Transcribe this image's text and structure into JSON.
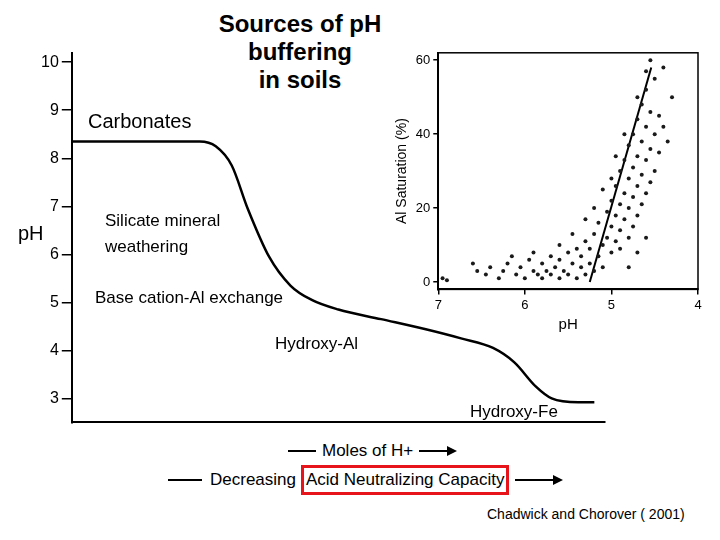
{
  "title": [
    "Sources of pH",
    "buffering",
    "in soils"
  ],
  "citation": "Chadwick and Chorover ( 2001)",
  "chart_data": [
    {
      "type": "line",
      "y_label": "pH",
      "x_label": "Moles of H+",
      "x_label_2": {
        "text": "Decreasing",
        "highlighted": "Acid Neutralizing Capacity"
      },
      "annotations": [
        "Carbonates",
        "Silicate mineral\nweathering",
        "Base cation-Al exchange",
        "Hydroxy-Al",
        "Hydroxy-Fe"
      ],
      "x": [
        0,
        24,
        27,
        30,
        33,
        37,
        41,
        45,
        50,
        58,
        66,
        73,
        79,
        83,
        87,
        90,
        95,
        98
      ],
      "values": [
        8.35,
        8.35,
        8.25,
        7.85,
        6.95,
        5.95,
        5.35,
        5.05,
        4.85,
        4.65,
        4.45,
        4.25,
        4.05,
        3.75,
        3.25,
        3.0,
        2.92,
        2.92
      ],
      "color": "#000000",
      "xlim": [
        0,
        100
      ],
      "xticks": [],
      "ylim": [
        2.5,
        10.2
      ],
      "yticks": [
        3,
        4,
        5,
        6,
        7,
        8,
        9,
        10
      ],
      "grid": false,
      "tick_labels": "y"
    },
    {
      "type": "scatter",
      "x_label": "pH",
      "y_label": "Al Saturation (%)",
      "series": [
        {
          "type": "scatter",
          "color": "#1a1a1a",
          "marker": "circle",
          "x": [
            6.95,
            6.9,
            6.6,
            6.55,
            6.45,
            6.4,
            6.3,
            6.25,
            6.2,
            6.1,
            6.05,
            6.0,
            5.95,
            5.9,
            5.85,
            5.8,
            5.8,
            5.75,
            5.7,
            5.7,
            5.65,
            5.6,
            5.6,
            5.55,
            5.5,
            5.5,
            5.45,
            5.4,
            5.4,
            5.35,
            5.35,
            5.3,
            5.3,
            5.25,
            5.25,
            5.2,
            5.2,
            5.15,
            5.15,
            5.1,
            5.1,
            5.05,
            5.05,
            5.0,
            5.0,
            5.0,
            4.95,
            4.95,
            4.95,
            4.9,
            4.9,
            4.9,
            4.9,
            4.85,
            4.85,
            4.85,
            4.8,
            4.8,
            4.8,
            4.8,
            4.75,
            4.75,
            4.75,
            4.75,
            4.7,
            4.7,
            4.7,
            4.7,
            4.65,
            4.65,
            4.65,
            4.65,
            4.6,
            4.6,
            4.6,
            4.6,
            4.55,
            4.55,
            4.55,
            4.5,
            4.5,
            4.5,
            4.45,
            4.45,
            4.4,
            4.4,
            4.35,
            4.3,
            5.6,
            5.45,
            5.3,
            5.2,
            5.1,
            5.0,
            4.95,
            4.85,
            4.7,
            4.6,
            4.55,
            4.8,
            4.7,
            4.6,
            5.9,
            6.15
          ],
          "values": [
            1,
            0.5,
            5,
            3,
            2,
            4,
            1,
            3,
            5,
            2,
            4,
            1,
            6,
            3,
            2,
            5,
            1,
            3,
            7,
            2,
            4,
            1,
            6,
            3,
            8,
            2,
            5,
            1,
            9,
            4,
            7,
            2,
            11,
            5,
            9,
            3,
            13,
            7,
            16,
            10,
            4,
            12,
            19,
            8,
            15,
            22,
            11,
            18,
            26,
            14,
            21,
            30,
            9,
            17,
            24,
            33,
            12,
            20,
            28,
            37,
            15,
            23,
            31,
            40,
            18,
            26,
            34,
            44,
            21,
            29,
            38,
            48,
            24,
            33,
            42,
            52,
            27,
            36,
            46,
            30,
            40,
            55,
            35,
            45,
            42,
            58,
            38,
            50,
            10,
            13,
            17,
            20,
            25,
            28,
            34,
            40,
            50,
            57,
            60,
            4,
            8,
            12,
            8,
            7
          ]
        },
        {
          "type": "line",
          "color": "#000000",
          "line_style": "solid",
          "x": [
            5.25,
            4.54
          ],
          "values": [
            0,
            58
          ]
        }
      ],
      "xlim": [
        7,
        4
      ],
      "xticks": [
        7,
        6,
        5,
        4
      ],
      "ylim": [
        -2,
        62
      ],
      "yticks": [
        0,
        20,
        40,
        60
      ],
      "grid": false
    }
  ]
}
